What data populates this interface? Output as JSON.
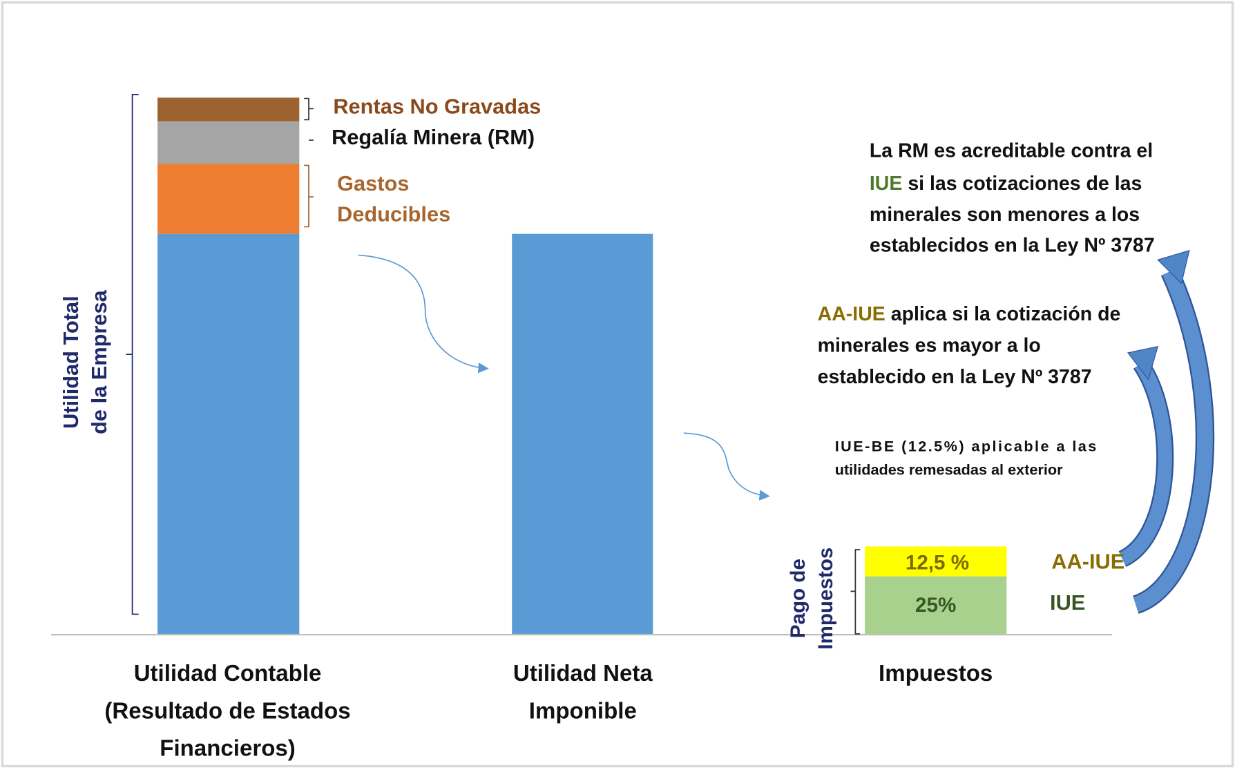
{
  "bracket_label": [
    "Utilidad Total",
    "de la Empresa"
  ],
  "segments": {
    "rentas": "Rentas No Gravadas",
    "regalia": "Regalía Minera (RM)",
    "gastos": [
      "Gastos",
      "Deducibles"
    ]
  },
  "categories": [
    [
      "Utilidad Contable",
      "(Resultado de Estados",
      "Financieros)"
    ],
    [
      "Utilidad Neta",
      "Imponible"
    ],
    [
      "Impuestos"
    ]
  ],
  "notes": {
    "rm": {
      "line1": "La RM es acreditable contra el",
      "iue": "IUE",
      "line2_rest": " si las cotizaciones de las",
      "line3": "minerales son menores a los",
      "line4": "establecidos en la Ley Nº 3787"
    },
    "aa": {
      "aa_iue": "AA-IUE",
      "line1_rest": " aplica si la cotización de",
      "line2": "minerales es mayor a lo",
      "line3": "establecido en la Ley Nº 3787"
    },
    "be": [
      "IUE-BE (12.5%) aplicable a las",
      "utilidades remesadas al exterior"
    ]
  },
  "taxes": {
    "label": [
      "Pago de",
      "Impuestos"
    ],
    "aa_rate": "12,5 %",
    "iue_rate": "25%",
    "aa_name": "AA-IUE",
    "iue_name": "IUE"
  }
}
